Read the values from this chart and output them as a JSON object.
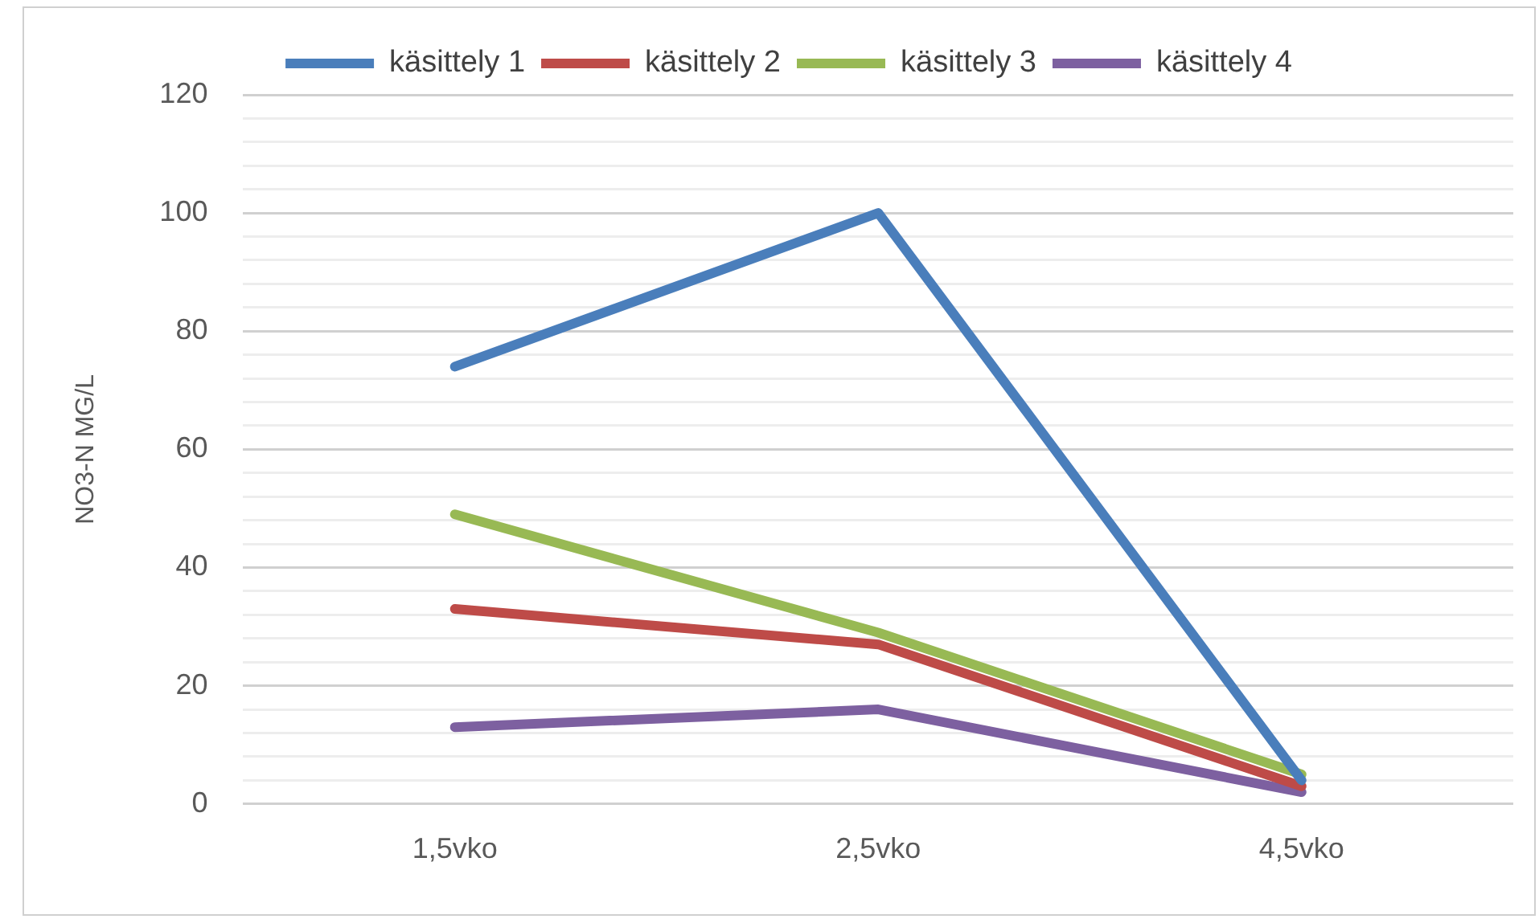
{
  "chart_data": {
    "type": "line",
    "ylabel": "NO3-N MG/L",
    "categories": [
      "1,5vko",
      "2,5vko",
      "4,5vko"
    ],
    "series": [
      {
        "name": "käsittely 1",
        "color": "#4a7ebb",
        "values": [
          74,
          100,
          4
        ]
      },
      {
        "name": "käsittely 2",
        "color": "#be4b48",
        "values": [
          33,
          27,
          3
        ]
      },
      {
        "name": "käsittely 3",
        "color": "#98b954",
        "values": [
          49,
          29,
          5
        ]
      },
      {
        "name": "käsittely 4",
        "color": "#7d60a0",
        "values": [
          13,
          16,
          2
        ]
      }
    ],
    "ylim": [
      0,
      120
    ],
    "yticks": [
      0,
      {
        "value": 4,
        "label": null
      },
      {
        "value": 8,
        "label": null
      },
      {
        "value": 12,
        "label": null
      },
      {
        "value": 16,
        "label": null
      },
      20,
      {
        "value": 24,
        "label": null
      },
      {
        "value": 28,
        "label": null
      },
      {
        "value": 32,
        "label": null
      },
      {
        "value": 36,
        "label": null
      },
      40,
      {
        "value": 44,
        "label": null
      },
      {
        "value": 48,
        "label": null
      },
      {
        "value": 52,
        "label": null
      },
      {
        "value": 56,
        "label": null
      },
      60,
      {
        "value": 64,
        "label": null
      },
      {
        "value": 68,
        "label": null
      },
      {
        "value": 72,
        "label": null
      },
      {
        "value": 76,
        "label": null
      },
      80,
      {
        "value": 84,
        "label": null
      },
      {
        "value": 88,
        "label": null
      },
      {
        "value": 92,
        "label": null
      },
      {
        "value": 96,
        "label": null
      },
      100,
      {
        "value": 104,
        "label": null
      },
      {
        "value": 108,
        "label": null
      },
      {
        "value": 112,
        "label": null
      },
      {
        "value": 116,
        "label": null
      },
      120
    ],
    "grid": "y",
    "legend": "top",
    "marker": "none",
    "line_style": "solid"
  }
}
